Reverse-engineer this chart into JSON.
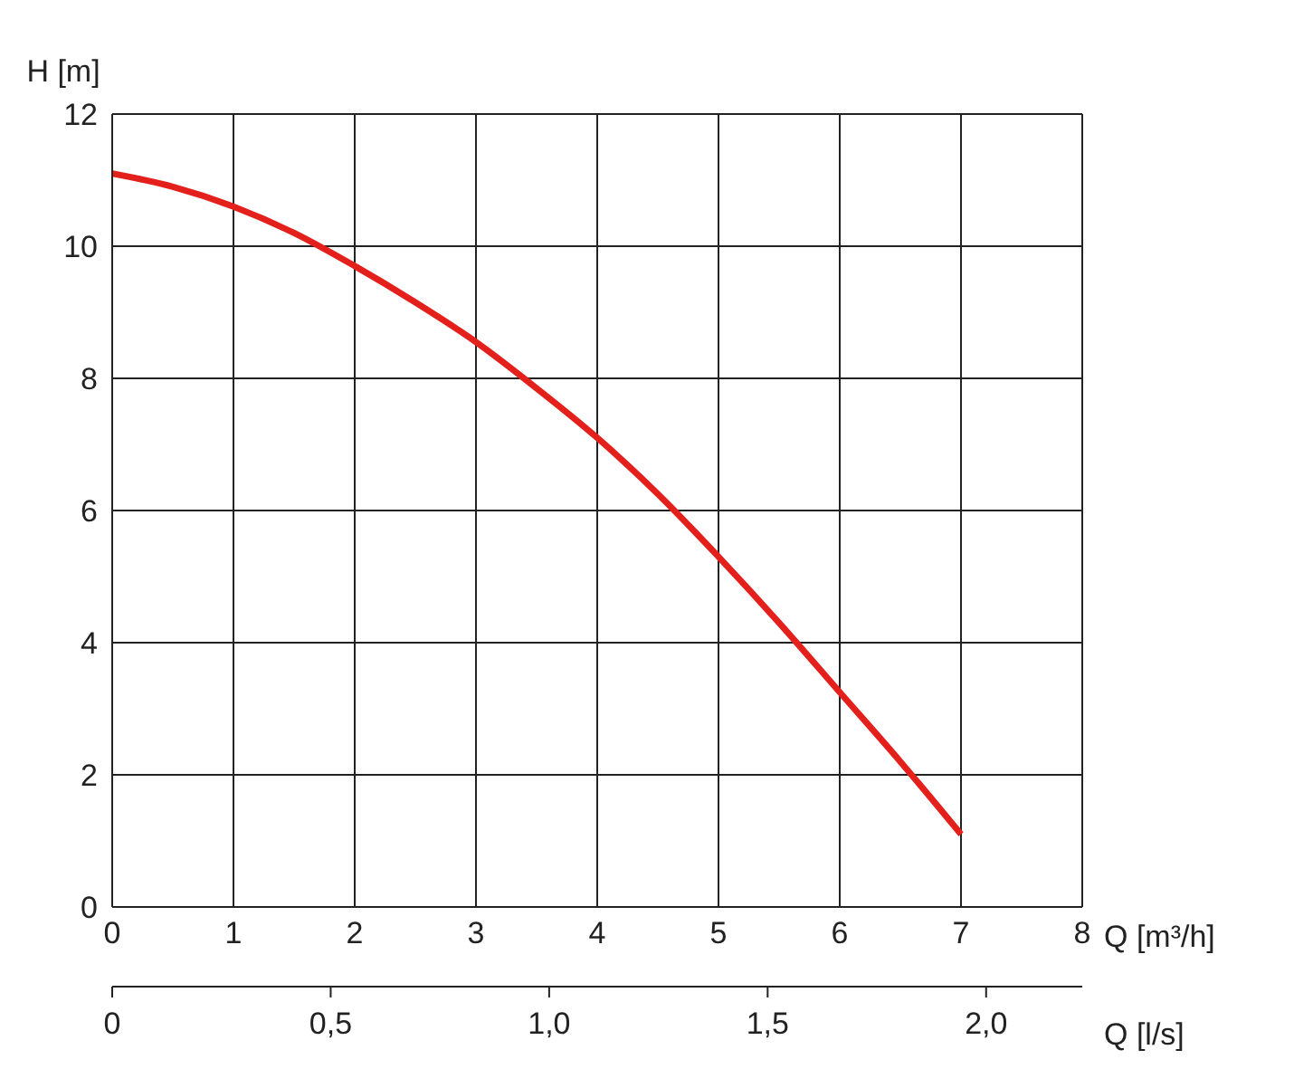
{
  "chart_data": {
    "type": "line",
    "xlabel": "Q [m³/h]",
    "x2label": "Q [l/s]",
    "ylabel": "H [m]",
    "x": [
      0,
      0.5,
      1,
      1.5,
      2,
      2.5,
      3,
      3.5,
      4,
      4.5,
      5,
      5.5,
      6,
      6.5,
      7
    ],
    "series": [
      {
        "color": "#e3201b",
        "values": [
          11.1,
          10.9,
          10.6,
          10.2,
          9.7,
          9.15,
          8.55,
          7.85,
          7.1,
          6.25,
          5.3,
          4.3,
          3.25,
          2.2,
          1.1
        ]
      }
    ],
    "xlim": [
      0,
      8
    ],
    "xticks": [
      0,
      1,
      2,
      3,
      4,
      5,
      6,
      7,
      8
    ],
    "x2lim": [
      0,
      2.22
    ],
    "x2ticks": [
      0,
      {
        "value": 0.5,
        "label": "0,5"
      },
      {
        "value": 1,
        "label": "1,0"
      },
      {
        "value": 1.5,
        "label": "1,5"
      },
      {
        "value": 2,
        "label": "2,0"
      }
    ],
    "ylim": [
      0,
      12
    ],
    "yticks": [
      0,
      2,
      4,
      6,
      8,
      10,
      12
    ],
    "grid": true,
    "legend": false,
    "marker": "none",
    "line_style": "solid"
  }
}
